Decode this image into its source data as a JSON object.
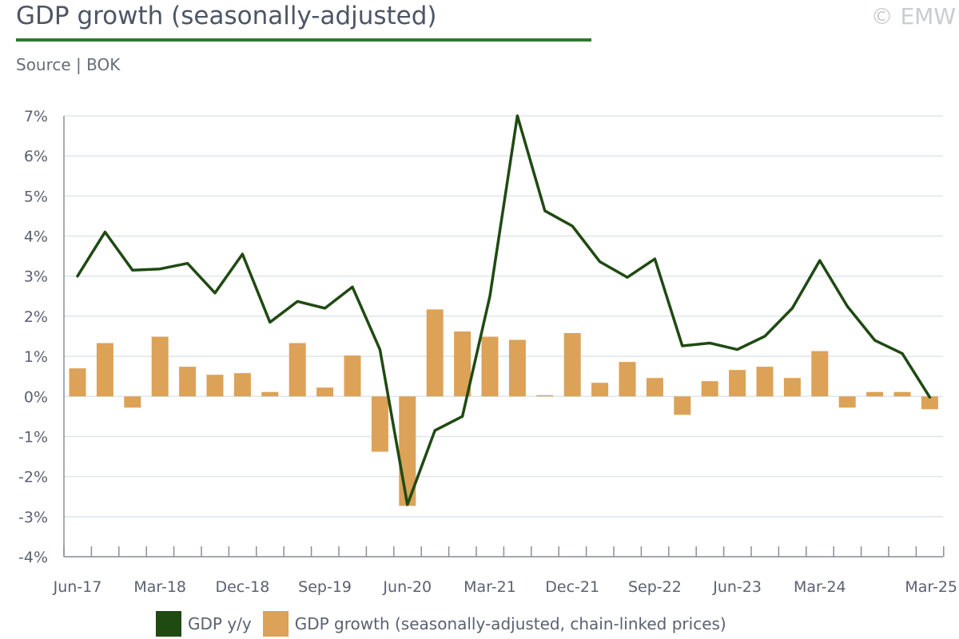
{
  "header": {
    "title": "GDP growth (seasonally-adjusted)",
    "source": "Source | BOK",
    "copyright": "© EMW"
  },
  "colors": {
    "line": "#1f4a12",
    "bar": "#dca258",
    "grid": "#dde6ee",
    "axis": "#8a8f98",
    "title_rule": "#2e7a2e"
  },
  "legend": {
    "line_label": "GDP y/y",
    "bar_label": "GDP growth (seasonally-adjusted, chain-linked prices)"
  },
  "chart_data": {
    "type": "bar+line",
    "categories": [
      "Jun-17",
      "Sep-17",
      "Dec-17",
      "Mar-18",
      "Jun-18",
      "Sep-18",
      "Dec-18",
      "Mar-19",
      "Jun-19",
      "Sep-19",
      "Dec-19",
      "Mar-20",
      "Jun-20",
      "Sep-20",
      "Dec-20",
      "Mar-21",
      "Jun-21",
      "Sep-21",
      "Dec-21",
      "Mar-22",
      "Jun-22",
      "Sep-22",
      "Dec-22",
      "Mar-23",
      "Jun-23",
      "Sep-23",
      "Dec-23",
      "Mar-24",
      "Jun-24",
      "Sep-24",
      "Dec-24",
      "Mar-25"
    ],
    "x_tick_labels": [
      "Jun-17",
      "Mar-18",
      "Dec-18",
      "Sep-19",
      "Jun-20",
      "Mar-21",
      "Dec-21",
      "Sep-22",
      "Jun-23",
      "Mar-24",
      "Mar-25"
    ],
    "y_tick_labels": [
      "7%",
      "6%",
      "5%",
      "4%",
      "3%",
      "2%",
      "1%",
      "0%",
      "-1%",
      "-2%",
      "-3%",
      "-4%"
    ],
    "ylim": [
      -4,
      7
    ],
    "grid": true,
    "legend_position": "bottom",
    "series": [
      {
        "name": "GDP y/y",
        "kind": "line",
        "values": [
          3.0,
          4.1,
          3.15,
          3.18,
          3.32,
          2.58,
          3.55,
          1.85,
          2.37,
          2.2,
          2.73,
          1.17,
          -2.7,
          -0.85,
          -0.5,
          2.5,
          7.0,
          4.63,
          4.25,
          3.36,
          2.97,
          3.43,
          1.26,
          1.33,
          1.17,
          1.5,
          2.2,
          3.39,
          2.25,
          1.4,
          1.07,
          -0.02
        ]
      },
      {
        "name": "GDP growth (seasonally-adjusted, chain-linked prices)",
        "kind": "bar",
        "values": [
          0.7,
          1.33,
          -0.28,
          1.49,
          0.74,
          0.54,
          0.58,
          0.11,
          1.33,
          0.22,
          1.02,
          -1.38,
          -2.73,
          2.17,
          1.62,
          1.49,
          1.41,
          0.03,
          1.58,
          0.34,
          0.86,
          0.46,
          -0.46,
          0.38,
          0.66,
          0.74,
          0.46,
          1.13,
          -0.28,
          0.11,
          0.11,
          -0.32
        ]
      }
    ]
  }
}
